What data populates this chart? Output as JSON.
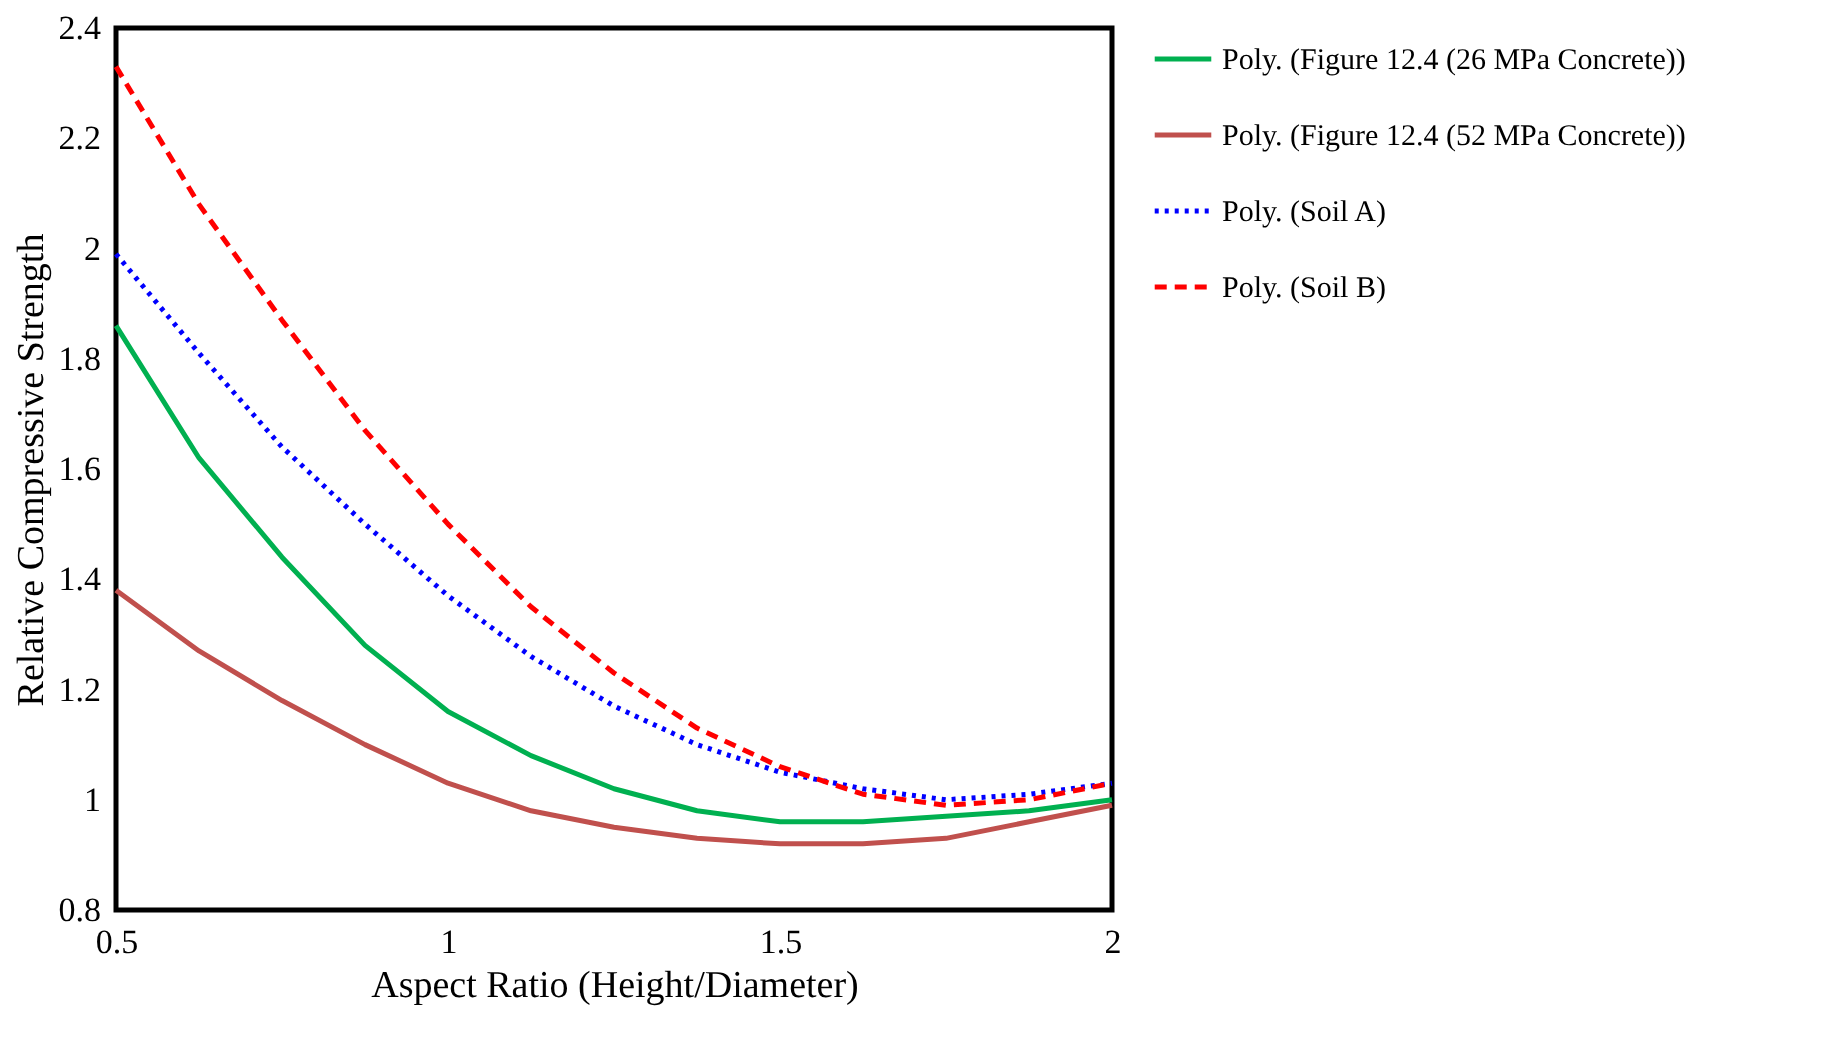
{
  "chart_data": {
    "type": "line",
    "xlabel": "Aspect Ratio (Height/Diameter)",
    "ylabel": "Relative Compressive Strength",
    "x": [
      0.5,
      0.625,
      0.75,
      0.875,
      1,
      1.125,
      1.25,
      1.375,
      1.5,
      1.625,
      1.75,
      1.875,
      2
    ],
    "xlim": [
      0.5,
      2
    ],
    "xticks": [
      0.5,
      1,
      1.5,
      2
    ],
    "ylim": [
      0.8,
      2.4
    ],
    "yticks": [
      0.8,
      1,
      1.2,
      1.4,
      1.6,
      1.8,
      2,
      2.2,
      2.4
    ],
    "grid": false,
    "legend": "right",
    "marker": "none",
    "series": [
      {
        "name": "Poly. (Figure 12.4 (26 MPa Concrete))",
        "color": "#00b050",
        "line_style": "solid",
        "values": [
          1.86,
          1.62,
          1.44,
          1.28,
          1.16,
          1.08,
          1.02,
          0.98,
          0.96,
          0.96,
          0.97,
          0.98,
          1.0
        ]
      },
      {
        "name": "Poly. (Figure 12.4 (52 MPa Concrete))",
        "color": "#c0504d",
        "line_style": "solid",
        "values": [
          1.38,
          1.27,
          1.18,
          1.1,
          1.03,
          0.98,
          0.95,
          0.93,
          0.92,
          0.92,
          0.93,
          0.96,
          0.99
        ]
      },
      {
        "name": "Poly. (Soil A)",
        "color": "#0000ff",
        "line_style": "dotted",
        "values": [
          1.99,
          1.81,
          1.64,
          1.5,
          1.37,
          1.26,
          1.17,
          1.1,
          1.05,
          1.02,
          1.0,
          1.01,
          1.03
        ]
      },
      {
        "name": "Poly. (Soil B)",
        "color": "#ff0000",
        "line_style": "dashed",
        "values": [
          2.33,
          2.08,
          1.87,
          1.67,
          1.5,
          1.35,
          1.23,
          1.13,
          1.06,
          1.01,
          0.99,
          1.0,
          1.03
        ]
      }
    ]
  }
}
